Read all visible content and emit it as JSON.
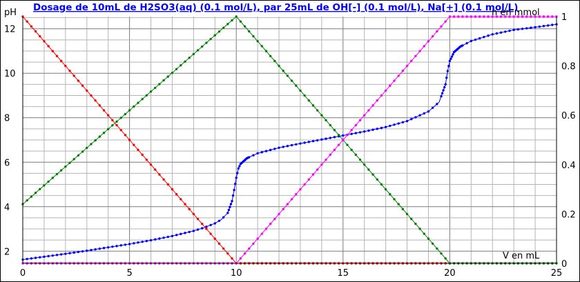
{
  "chart_data": {
    "type": "line",
    "title": "Dosage de 10mL de H2SO3(aq) (0.1 mol/L),  par 25mL  de OH[-] (0.1 mol/L), Na[+] (0.1 mol/L)",
    "xlabel": "V en mL",
    "ylabel_left": "pH",
    "ylabel_right": "n en mmol",
    "xlim": [
      0,
      25
    ],
    "ylim_left": [
      1.45,
      12.55
    ],
    "ylim_right": [
      0,
      1
    ],
    "x_ticks": [
      "0",
      "5",
      "10",
      "15",
      "20",
      "25"
    ],
    "y_left_ticks": [
      "2",
      "4",
      "6",
      "8",
      "10",
      "12"
    ],
    "y_right_ticks": [
      "0",
      "0.2",
      "0.4",
      "0.6",
      "0.8",
      "1"
    ],
    "grid": true,
    "x_minor_step": 1,
    "y_left_minor_step": 0.5,
    "series": [
      {
        "axis": "left",
        "color": "#0000ff",
        "points": [
          [
            0,
            1.62
          ],
          [
            1,
            1.75
          ],
          [
            2,
            1.88
          ],
          [
            3,
            2.02
          ],
          [
            4,
            2.17
          ],
          [
            5,
            2.32
          ],
          [
            6,
            2.49
          ],
          [
            7,
            2.68
          ],
          [
            8,
            2.91
          ],
          [
            8.5,
            3.06
          ],
          [
            9,
            3.25
          ],
          [
            9.3,
            3.42
          ],
          [
            9.6,
            3.72
          ],
          [
            9.8,
            4.25
          ],
          [
            9.9,
            4.75
          ],
          [
            10,
            5.3
          ],
          [
            10.1,
            5.72
          ],
          [
            10.2,
            5.92
          ],
          [
            10.5,
            6.18
          ],
          [
            11,
            6.4
          ],
          [
            12,
            6.65
          ],
          [
            13,
            6.84
          ],
          [
            14,
            7.02
          ],
          [
            15,
            7.2
          ],
          [
            16,
            7.38
          ],
          [
            17,
            7.58
          ],
          [
            18,
            7.85
          ],
          [
            19,
            8.28
          ],
          [
            19.5,
            8.7
          ],
          [
            19.8,
            9.5
          ],
          [
            19.9,
            10.1
          ],
          [
            20,
            10.55
          ],
          [
            20.2,
            10.95
          ],
          [
            20.5,
            11.2
          ],
          [
            21,
            11.45
          ],
          [
            22,
            11.75
          ],
          [
            23,
            11.95
          ],
          [
            24,
            12.07
          ],
          [
            25,
            12.2
          ]
        ]
      },
      {
        "axis": "right",
        "color": "#ff0000",
        "points": [
          [
            0,
            1.0
          ],
          [
            10,
            0.0
          ],
          [
            20,
            0.0
          ]
        ]
      },
      {
        "axis": "right",
        "color": "#008000",
        "points": [
          [
            0,
            0.24
          ],
          [
            10,
            1.0
          ],
          [
            20,
            0.0
          ],
          [
            25,
            0.0
          ]
        ]
      },
      {
        "axis": "right",
        "color": "#ff00ff",
        "points": [
          [
            0,
            0.0
          ],
          [
            10,
            0.0
          ],
          [
            20,
            1.0
          ],
          [
            25,
            1.0
          ]
        ]
      }
    ]
  }
}
